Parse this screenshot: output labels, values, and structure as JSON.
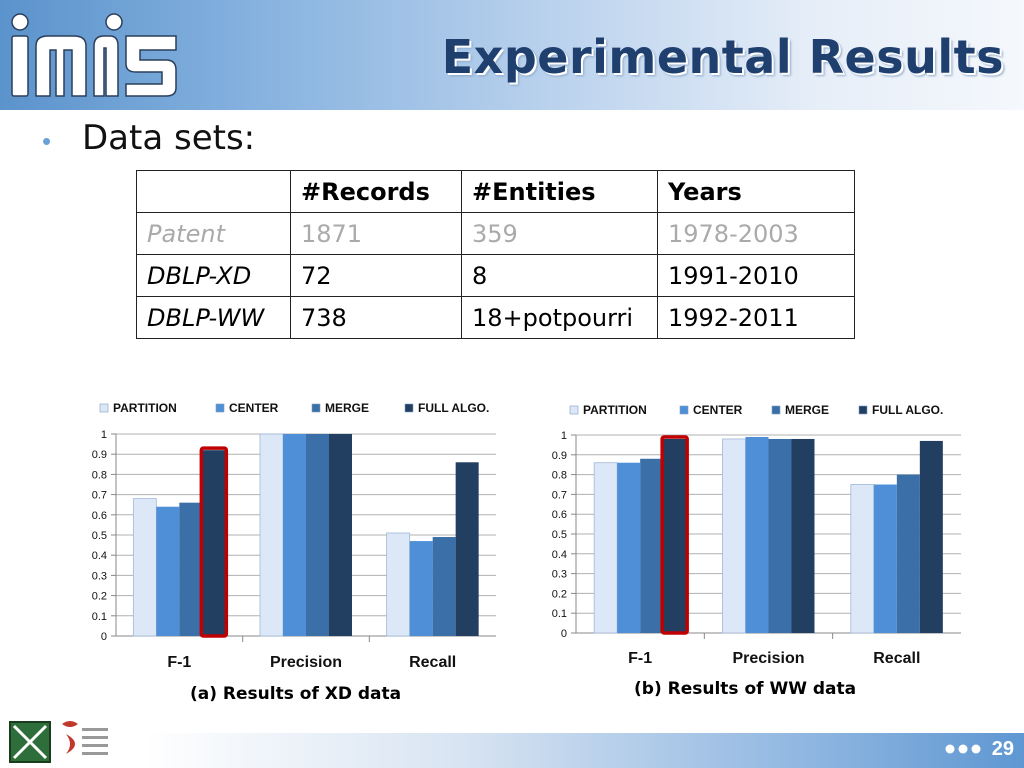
{
  "header": {
    "title": "Experimental Results",
    "logo_text": "mi5"
  },
  "bullet": {
    "text": "Data sets:"
  },
  "table": {
    "headers": [
      "",
      "#Records",
      "#Entities",
      "Years"
    ],
    "rows": [
      [
        "Patent",
        "1871",
        "359",
        "1978-2003"
      ],
      [
        "DBLP-XD",
        "72",
        "8",
        "1991-2010"
      ],
      [
        "DBLP-WW",
        "738",
        "18+potpourri",
        "1992-2011"
      ]
    ]
  },
  "chart_data": [
    {
      "type": "bar",
      "caption": "(a) Results of XD data",
      "categories": [
        "F-1",
        "Precision",
        "Recall"
      ],
      "series": [
        {
          "name": "PARTITION",
          "values": [
            0.68,
            1.0,
            0.51
          ]
        },
        {
          "name": "CENTER",
          "values": [
            0.64,
            1.0,
            0.47
          ]
        },
        {
          "name": "MERGE",
          "values": [
            0.66,
            1.0,
            0.49
          ]
        },
        {
          "name": "FULL ALGO.",
          "values": [
            0.92,
            1.0,
            0.86
          ]
        }
      ],
      "ylim": [
        0,
        1
      ],
      "yticks": [
        "0",
        "0.1",
        "0.2",
        "0.3",
        "0.4",
        "0.5",
        "0.6",
        "0.7",
        "0.8",
        "0.9",
        "1"
      ],
      "legend": "top",
      "grid": true,
      "highlight": {
        "category": "F-1",
        "series": "FULL ALGO.",
        "color": "#c00000"
      },
      "colors": [
        "#dce8f7",
        "#4f8fd8",
        "#3a6fa8",
        "#223f62"
      ]
    },
    {
      "type": "bar",
      "caption": "(b) Results of WW data",
      "categories": [
        "F-1",
        "Precision",
        "Recall"
      ],
      "series": [
        {
          "name": "PARTITION",
          "values": [
            0.86,
            0.98,
            0.75
          ]
        },
        {
          "name": "CENTER",
          "values": [
            0.86,
            0.99,
            0.75
          ]
        },
        {
          "name": "MERGE",
          "values": [
            0.88,
            0.98,
            0.8
          ]
        },
        {
          "name": "FULL ALGO.",
          "values": [
            0.98,
            0.98,
            0.97
          ]
        }
      ],
      "ylim": [
        0,
        1
      ],
      "yticks": [
        "0",
        "0.1",
        "0.2",
        "0.3",
        "0.4",
        "0.5",
        "0.6",
        "0.7",
        "0.8",
        "0.9",
        "1"
      ],
      "legend": "top",
      "grid": true,
      "highlight": {
        "category": "F-1",
        "series": "FULL ALGO.",
        "color": "#c00000"
      },
      "colors": [
        "#dce8f7",
        "#4f8fd8",
        "#3a6fa8",
        "#223f62"
      ]
    }
  ],
  "footer": {
    "page_number": "29"
  }
}
